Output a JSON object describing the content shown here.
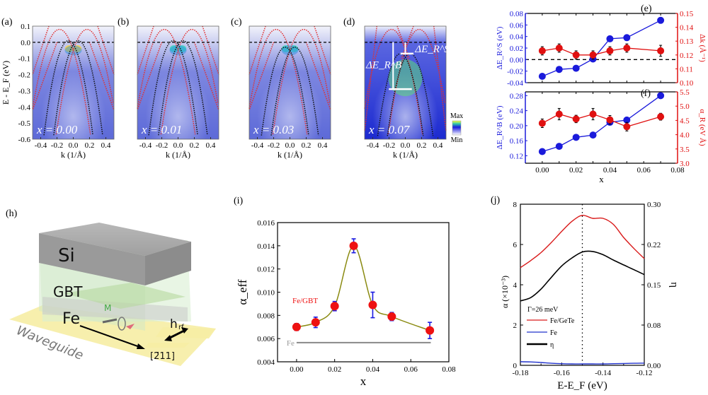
{
  "figure": {
    "panel_labels": [
      "(a)",
      "(b)",
      "(c)",
      "(d)",
      "(e)",
      "(f)",
      "(h)",
      "(i)",
      "(j)"
    ]
  },
  "chart_data": [
    {
      "id": "arpes",
      "type": "heatmap",
      "panels": [
        {
          "label": "(a)",
          "annotation": "x = 0.00",
          "x_value": 0.0
        },
        {
          "label": "(b)",
          "annotation": "x = 0.01",
          "x_value": 0.01
        },
        {
          "label": "(c)",
          "annotation": "x = 0.03",
          "x_value": 0.03
        },
        {
          "label": "(d)",
          "annotation": "x = 0.07",
          "x_value": 0.07,
          "markers": [
            "ΔE_R^S",
            "ΔE_R^B"
          ]
        }
      ],
      "xlabel": "k (1/Å)",
      "ylabel": "E - E_F (eV)",
      "xlim": [
        -0.5,
        0.5
      ],
      "ylim": [
        -0.6,
        0.1
      ],
      "xticks": [
        "-0.4",
        "-0.2",
        "0.0",
        "0.2",
        "0.4"
      ],
      "yticks": [
        "0.1",
        "0.0",
        "-0.1",
        "-0.2",
        "-0.3",
        "-0.4",
        "-0.5",
        "-0.6"
      ],
      "colorbar": {
        "max_label": "Max",
        "min_label": "Min"
      },
      "fermi_level": 0.0
    },
    {
      "id": "panel-e",
      "type": "line",
      "label": "(e)",
      "x": [
        0.0,
        0.01,
        0.02,
        0.03,
        0.04,
        0.05,
        0.07
      ],
      "series": [
        {
          "name": "ΔE_R^S",
          "axis": "left",
          "color": "#1a1adb",
          "values": [
            -0.029,
            -0.017,
            -0.015,
            0.001,
            0.036,
            0.038,
            0.068
          ]
        },
        {
          "name": "Δk",
          "axis": "right",
          "color": "#e01010",
          "values": [
            0.123,
            0.125,
            0.12,
            0.12,
            0.123,
            0.125,
            0.123
          ],
          "errors": [
            0.003,
            0.003,
            0.003,
            0.003,
            0.003,
            0.003,
            0.004
          ]
        }
      ],
      "ylabel_left": "ΔE_R^S (eV)",
      "ylabel_right": "Δk (Å⁻¹)",
      "ylim_left": [
        -0.04,
        0.08
      ],
      "ylim_right": [
        0.1,
        0.15
      ],
      "yticks_left": [
        "-0.04",
        "-0.02",
        "0.00",
        "0.02",
        "0.04",
        "0.06",
        "0.08"
      ],
      "yticks_right": [
        "0.10",
        "0.11",
        "0.12",
        "0.13",
        "0.14",
        "0.15"
      ],
      "xlim": [
        -0.01,
        0.08
      ],
      "reference_line": 0.0
    },
    {
      "id": "panel-f",
      "type": "line",
      "label": "(f)",
      "x": [
        0.0,
        0.01,
        0.02,
        0.03,
        0.04,
        0.05,
        0.07
      ],
      "series": [
        {
          "name": "ΔE_R^B",
          "axis": "left",
          "color": "#1a1adb",
          "values": [
            0.131,
            0.145,
            0.169,
            0.175,
            0.209,
            0.215,
            0.28
          ]
        },
        {
          "name": "α_R",
          "axis": "right",
          "color": "#e01010",
          "values": [
            4.4,
            4.72,
            4.55,
            4.72,
            4.52,
            4.28,
            4.63
          ],
          "errors": [
            0.15,
            0.2,
            0.13,
            0.2,
            0.15,
            0.15,
            0.12
          ]
        }
      ],
      "ylabel_left": "ΔE_R^B (eV)",
      "ylabel_right": "α_R (eV Å)",
      "ylim_left": [
        0.1,
        0.29
      ],
      "ylim_right": [
        3.0,
        5.5
      ],
      "yticks_left": [
        "0.12",
        "0.16",
        "0.20",
        "0.24",
        "0.28"
      ],
      "yticks_right": [
        "3.0",
        "3.5",
        "4.0",
        "4.5",
        "5.0",
        "5.5"
      ],
      "xlim": [
        -0.01,
        0.08
      ],
      "xticks": [
        "0.00",
        "0.02",
        "0.04",
        "0.06",
        "0.08"
      ],
      "xlabel": "x"
    },
    {
      "id": "panel-i",
      "type": "scatter",
      "label": "(i)",
      "x": [
        0.0,
        0.01,
        0.02,
        0.03,
        0.04,
        0.05,
        0.07
      ],
      "series": [
        {
          "name": "Fe/GBT",
          "color": "#ee1111",
          "values": [
            0.007,
            0.0074,
            0.0088,
            0.014,
            0.0089,
            0.0079,
            0.0067
          ],
          "errors": [
            0.0003,
            0.00045,
            0.0004,
            0.0006,
            0.0011,
            0.00035,
            0.0007
          ]
        },
        {
          "name": "Fe",
          "color": "#888888",
          "values": [
            0.00565,
            0.00565
          ]
        }
      ],
      "xlabel": "x",
      "ylabel": "α_eff",
      "xlim": [
        -0.01,
        0.08
      ],
      "ylim": [
        0.004,
        0.016
      ],
      "xticks": [
        "0.00",
        "0.02",
        "0.04",
        "0.06",
        "0.08"
      ],
      "yticks": [
        "0.004",
        "0.006",
        "0.008",
        "0.010",
        "0.012",
        "0.014",
        "0.016"
      ]
    },
    {
      "id": "panel-j",
      "type": "line",
      "label": "(j)",
      "x": [
        -0.18,
        -0.175,
        -0.17,
        -0.165,
        -0.16,
        -0.155,
        -0.15,
        -0.145,
        -0.14,
        -0.135,
        -0.13,
        -0.125,
        -0.12
      ],
      "series": [
        {
          "name": "Fe/GeTe",
          "axis": "left",
          "color": "#d91a1a",
          "values": [
            4.85,
            5.2,
            5.6,
            6.1,
            6.65,
            7.15,
            7.45,
            7.3,
            7.3,
            7.0,
            6.35,
            5.8,
            5.3
          ]
        },
        {
          "name": "Fe",
          "axis": "left",
          "color": "#2233cc",
          "values": [
            0.18,
            0.17,
            0.14,
            0.1,
            0.08,
            0.07,
            0.07,
            0.07,
            0.07,
            0.08,
            0.09,
            0.1,
            0.11
          ]
        },
        {
          "name": "η",
          "axis": "right",
          "color": "#000000",
          "values": [
            0.12,
            0.126,
            0.142,
            0.164,
            0.185,
            0.2,
            0.211,
            0.212,
            0.206,
            0.196,
            0.187,
            0.178,
            0.169
          ]
        }
      ],
      "legend_title": "Γ=26 meV",
      "legend_position": "lower-left",
      "xlabel": "E-E_F (eV)",
      "ylabel_left": "α (×10⁻³)",
      "ylabel_right": "η",
      "xlim": [
        -0.18,
        -0.12
      ],
      "ylim_left": [
        0,
        8
      ],
      "ylim_right": [
        0.0,
        0.3
      ],
      "xticks": [
        "-0.18",
        "-0.16",
        "-0.14",
        "-0.12"
      ],
      "yticks_left": [
        "0",
        "2",
        "4",
        "6",
        "8"
      ],
      "yticks_right": [
        "0.00",
        "0.08",
        "0.15",
        "0.22",
        "0.30"
      ],
      "vertical_marker": -0.15
    }
  ],
  "schematic": {
    "label": "(h)",
    "layers": [
      "Si",
      "GBT",
      "Fe"
    ],
    "waveguide_label": "Waveguide",
    "magnetization_label": "M",
    "rf_field_label": "h",
    "rf_field_subscript": "rf",
    "direction_label": "[2̄11]"
  }
}
